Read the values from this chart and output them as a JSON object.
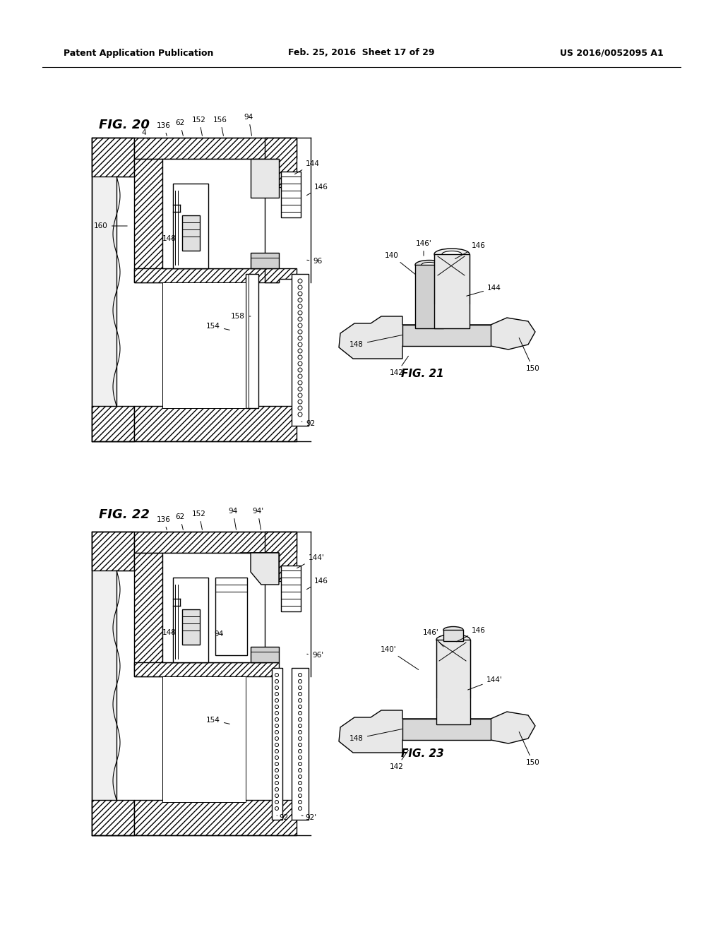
{
  "background_color": "#ffffff",
  "header_left": "Patent Application Publication",
  "header_center": "Feb. 25, 2016  Sheet 17 of 29",
  "header_right": "US 2016/0052095 A1",
  "fig20_label": "FIG. 20",
  "fig21_label": "FIG. 21",
  "fig22_label": "FIG. 22",
  "fig23_label": "FIG. 23",
  "line_color": "#000000",
  "hatch_color": "#000000",
  "gray_fill": "#d0d0d0",
  "light_gray": "#e8e8e8"
}
